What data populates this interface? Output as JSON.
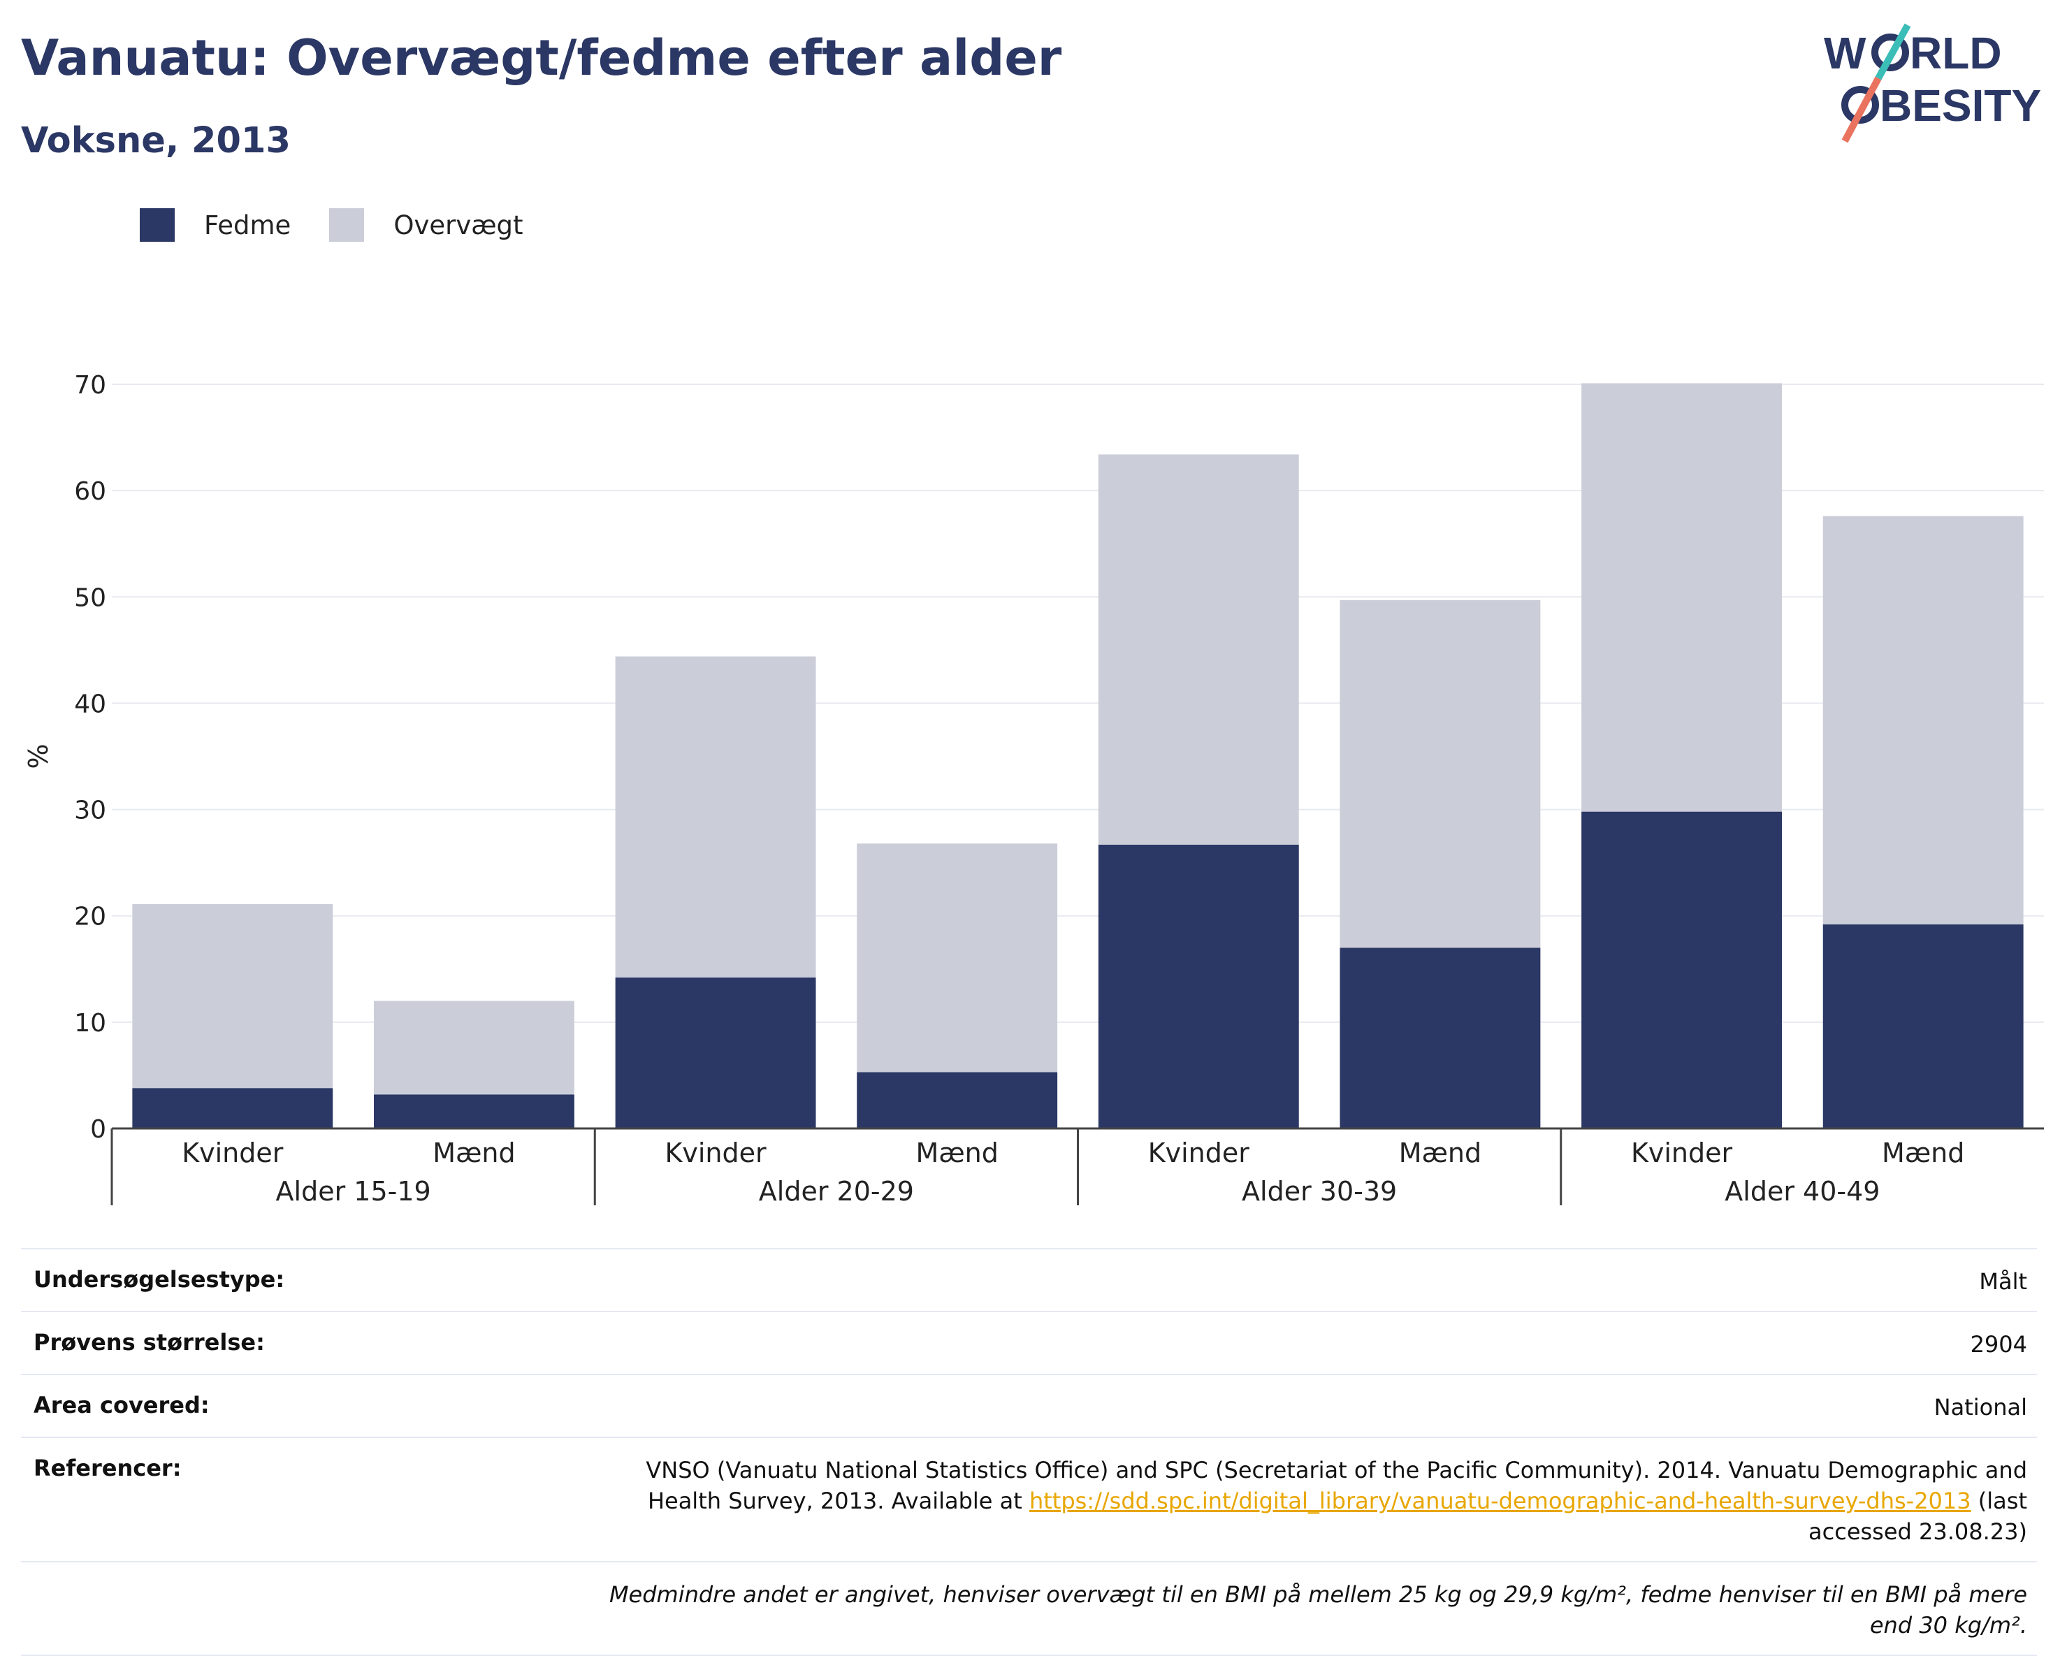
{
  "header": {
    "title": "Vanuatu: Overvægt/fedme efter alder",
    "subtitle": "Voksne, 2013"
  },
  "logo": {
    "line1": "WORLD",
    "line2": "OBESITY"
  },
  "legend": {
    "items": [
      {
        "label": "Fedme",
        "color": "#2b3764"
      },
      {
        "label": "Overvægt",
        "color": "#cbcdd8"
      }
    ]
  },
  "chart_data": {
    "type": "bar",
    "stacked": true,
    "ylabel": "%",
    "ylim": [
      0,
      70
    ],
    "yticks": [
      0,
      10,
      20,
      30,
      40,
      50,
      60,
      70
    ],
    "groups": [
      "Alder 15-19",
      "Alder 20-29",
      "Alder 30-39",
      "Alder 40-49"
    ],
    "categories": [
      "Kvinder",
      "Mænd",
      "Kvinder",
      "Mænd",
      "Kvinder",
      "Mænd",
      "Kvinder",
      "Mænd"
    ],
    "series": [
      {
        "name": "Fedme",
        "values": [
          3.8,
          3.2,
          14.2,
          5.3,
          26.7,
          17.0,
          29.8,
          19.2
        ]
      },
      {
        "name": "Overvægt",
        "values": [
          17.3,
          8.8,
          30.2,
          21.5,
          36.7,
          32.7,
          40.3,
          38.4
        ]
      }
    ],
    "grid": true,
    "legend_position": "top-left"
  },
  "info": {
    "survey_type_label": "Undersøgelsestype:",
    "survey_type_value": "Målt",
    "sample_size_label": "Prøvens størrelse:",
    "sample_size_value": "2904",
    "area_label": "Area covered:",
    "area_value": "National",
    "references_label": "Referencer:",
    "references_text_1": "VNSO (Vanuatu National Statistics Office) and SPC (Secretariat of the Pacific Community). 2014. Vanuatu Demographic and Health Survey, 2013. Available at",
    "references_link": "https://sdd.spc.int/digital_library/vanuatu-demographic-and-health-survey-dhs-2013",
    "references_text_2": "(last accessed 23.08.23)",
    "note": "Medmindre andet er angivet, henviser overvægt til en BMI på mellem 25 kg og 29,9 kg/m², fedme henviser til en BMI på mere end 30 kg/m²."
  }
}
